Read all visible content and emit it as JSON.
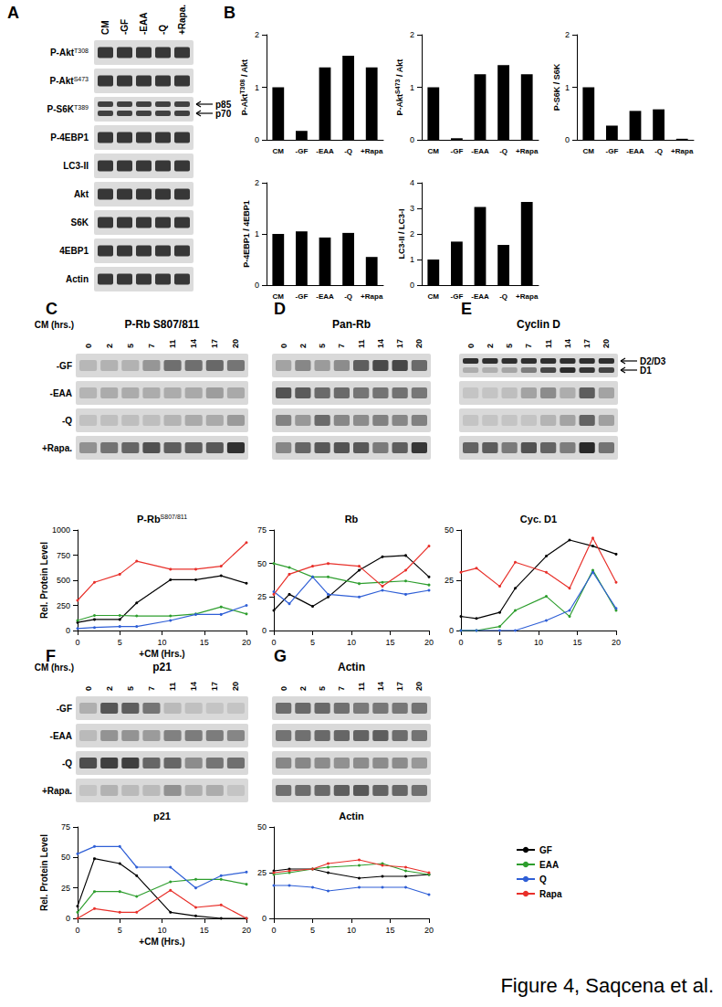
{
  "figure_caption": "Figure 4, Saqcena et al.",
  "panel_A": {
    "letter": "A",
    "columns": [
      "CM",
      "-GF",
      "-EAA",
      "-Q",
      "+Rapa."
    ],
    "rows": [
      {
        "text": "P-Akt",
        "sup": "T308"
      },
      {
        "text": "P-Akt",
        "sup": "S473"
      },
      {
        "text": "P-S6K",
        "sup": "T389",
        "band_labels": [
          "p85",
          "p70"
        ]
      },
      "P-4EBP1",
      "LC3-II",
      "Akt",
      "S6K",
      "4EBP1",
      "Actin"
    ]
  },
  "panel_B_letter": "B",
  "time_blots": [
    {
      "letter": "C",
      "title": "P-Rb S807/811",
      "time_label": "CM (hrs.)",
      "rows": [
        "-GF",
        "-EAA",
        "-Q",
        "+Rapa."
      ]
    },
    {
      "letter": "D",
      "title": "Pan-Rb"
    },
    {
      "letter": "E",
      "title": "Cyclin D",
      "band_labels": [
        "D2/D3",
        "D1"
      ]
    },
    {
      "letter": "F",
      "title": "p21",
      "time_label": "CM (hrs.)",
      "rows": [
        "-GF",
        "-EAA",
        "-Q",
        "+Rapa."
      ]
    },
    {
      "letter": "G",
      "title": "Actin"
    }
  ],
  "chart_data": [
    {
      "type": "bar",
      "ylabel": {
        "text": "P-Akt",
        "sup": "T308",
        "after": " / Akt"
      },
      "categories": [
        "CM",
        "-GF",
        "-EAA",
        "-Q",
        "+Rapa"
      ],
      "values": [
        1.0,
        0.17,
        1.38,
        1.6,
        1.38
      ],
      "color": "#000000",
      "ylim": [
        0,
        2
      ],
      "yticks": [
        0,
        1,
        2
      ]
    },
    {
      "type": "bar",
      "ylabel": {
        "text": "P-Akt",
        "sup": "S473",
        "after": " / Akt"
      },
      "categories": [
        "CM",
        "-GF",
        "-EAA",
        "-Q",
        "+Rapa"
      ],
      "values": [
        1.0,
        0.03,
        1.25,
        1.42,
        1.25
      ],
      "color": "#000000",
      "ylim": [
        0,
        2
      ],
      "yticks": [
        0,
        1,
        2
      ]
    },
    {
      "type": "bar",
      "ylabel": "P-S6K / S6K",
      "categories": [
        "CM",
        "-GF",
        "-EAA",
        "-Q",
        "+Rapa"
      ],
      "values": [
        1.0,
        0.27,
        0.55,
        0.58,
        0.02
      ],
      "color": "#000000",
      "ylim": [
        0,
        2
      ],
      "yticks": [
        0,
        1,
        2
      ]
    },
    {
      "type": "bar",
      "ylabel": "P-4EBP1 / 4EBP1",
      "categories": [
        "CM",
        "-GF",
        "-EAA",
        "-Q",
        "+Rapa"
      ],
      "values": [
        1.0,
        1.05,
        0.93,
        1.02,
        0.55
      ],
      "color": "#000000",
      "ylim": [
        0,
        2
      ],
      "yticks": [
        0,
        1,
        2
      ]
    },
    {
      "type": "bar",
      "ylabel": "LC3-II / LC3-I",
      "categories": [
        "CM",
        "-GF",
        "-EAA",
        "-Q",
        "+Rapa"
      ],
      "values": [
        1.0,
        1.7,
        3.05,
        1.57,
        3.25
      ],
      "color": "#000000",
      "ylim": [
        0,
        4
      ],
      "yticks": [
        0,
        1,
        2,
        3,
        4
      ]
    },
    {
      "type": "line",
      "title": {
        "text": "P-Rb",
        "sup": "S807/811"
      },
      "ylabel": "Rel. Protein Level",
      "xlabel": "+CM (Hrs.)",
      "x": [
        0,
        2,
        5,
        7,
        11,
        14,
        17,
        20
      ],
      "xlim": [
        0,
        20
      ],
      "xticks": [
        0,
        5,
        10,
        15,
        20
      ],
      "ylim": [
        0,
        1000
      ],
      "yticks": [
        0,
        250,
        500,
        750,
        1000
      ],
      "marker": "circle",
      "series": [
        {
          "name": "GF",
          "color": "#000000",
          "values": [
            80,
            110,
            110,
            275,
            505,
            505,
            545,
            470
          ]
        },
        {
          "name": "EAA",
          "color": "#2e9e2e",
          "values": [
            100,
            150,
            150,
            145,
            145,
            165,
            235,
            165
          ]
        },
        {
          "name": "Q",
          "color": "#2f5fd6",
          "values": [
            20,
            30,
            40,
            40,
            100,
            160,
            160,
            250
          ]
        },
        {
          "name": "Rapa",
          "color": "#e8302a",
          "values": [
            300,
            480,
            560,
            690,
            610,
            610,
            640,
            875
          ]
        }
      ]
    },
    {
      "type": "line",
      "title": "Rb",
      "x": [
        0,
        2,
        5,
        7,
        11,
        14,
        17,
        20
      ],
      "xlim": [
        0,
        20
      ],
      "xticks": [
        0,
        5,
        10,
        15,
        20
      ],
      "ylim": [
        0,
        75
      ],
      "yticks": [
        0,
        25,
        50,
        75
      ],
      "marker": "circle",
      "series": [
        {
          "name": "GF",
          "color": "#000000",
          "values": [
            15,
            27,
            18,
            25,
            45,
            55,
            56,
            40
          ]
        },
        {
          "name": "EAA",
          "color": "#2e9e2e",
          "values": [
            50,
            47,
            40,
            40,
            35,
            36,
            37,
            34
          ]
        },
        {
          "name": "Q",
          "color": "#2f5fd6",
          "values": [
            29,
            20,
            40,
            27,
            25,
            30,
            27,
            30
          ]
        },
        {
          "name": "Rapa",
          "color": "#e8302a",
          "values": [
            27,
            42,
            48,
            50,
            48,
            33,
            45,
            63
          ]
        }
      ]
    },
    {
      "type": "line",
      "title": "Cyc. D1",
      "x": [
        0,
        2,
        5,
        7,
        11,
        14,
        17,
        20
      ],
      "xlim": [
        0,
        20
      ],
      "xticks": [
        0,
        5,
        10,
        15,
        20
      ],
      "ylim": [
        0,
        50
      ],
      "yticks": [
        0,
        25,
        50
      ],
      "marker": "circle",
      "series": [
        {
          "name": "GF",
          "color": "#000000",
          "values": [
            7,
            6,
            9,
            21,
            37,
            45,
            42,
            38
          ]
        },
        {
          "name": "EAA",
          "color": "#2e9e2e",
          "values": [
            0,
            0,
            2,
            10,
            17,
            7,
            30,
            10
          ]
        },
        {
          "name": "Q",
          "color": "#2f5fd6",
          "values": [
            0,
            0,
            0,
            0,
            5,
            10,
            29,
            11
          ]
        },
        {
          "name": "Rapa",
          "color": "#e8302a",
          "values": [
            29,
            31,
            22,
            34,
            29,
            21,
            46,
            24
          ]
        }
      ]
    },
    {
      "type": "line",
      "title": "p21",
      "ylabel": "Rel. Protein Level",
      "xlabel": "+CM (Hrs.)",
      "x": [
        0,
        2,
        5,
        7,
        11,
        14,
        17,
        20
      ],
      "xlim": [
        0,
        20
      ],
      "xticks": [
        0,
        5,
        10,
        15,
        20
      ],
      "ylim": [
        0,
        75
      ],
      "yticks": [
        0,
        25,
        50,
        75
      ],
      "marker": "circle",
      "series": [
        {
          "name": "GF",
          "color": "#000000",
          "values": [
            10,
            49,
            45,
            35,
            5,
            2,
            0,
            0
          ]
        },
        {
          "name": "EAA",
          "color": "#2e9e2e",
          "values": [
            5,
            22,
            22,
            18,
            30,
            32,
            32,
            28
          ]
        },
        {
          "name": "Q",
          "color": "#2f5fd6",
          "values": [
            53,
            59,
            59,
            42,
            42,
            25,
            35,
            38
          ]
        },
        {
          "name": "Rapa",
          "color": "#e8302a",
          "values": [
            0,
            8,
            5,
            5,
            23,
            9,
            11,
            0
          ]
        }
      ]
    },
    {
      "type": "line",
      "title": "Actin",
      "legend": "right",
      "x": [
        0,
        2,
        5,
        7,
        11,
        14,
        17,
        20
      ],
      "xlim": [
        0,
        20
      ],
      "xticks": [
        0,
        5,
        10,
        15,
        20
      ],
      "ylim": [
        0,
        50
      ],
      "yticks": [
        0,
        25,
        50
      ],
      "marker": "circle",
      "series": [
        {
          "name": "GF",
          "color": "#000000",
          "values": [
            26,
            27,
            27,
            25,
            22,
            23,
            23,
            24
          ]
        },
        {
          "name": "EAA",
          "color": "#2e9e2e",
          "values": [
            24,
            25,
            27,
            28,
            29,
            30,
            26,
            24
          ]
        },
        {
          "name": "Q",
          "color": "#2f5fd6",
          "values": [
            18,
            18,
            17,
            15,
            17,
            17,
            17,
            13
          ]
        },
        {
          "name": "Rapa",
          "color": "#e8302a",
          "values": [
            25,
            26,
            27,
            30,
            32,
            29,
            28,
            25
          ]
        }
      ]
    }
  ]
}
